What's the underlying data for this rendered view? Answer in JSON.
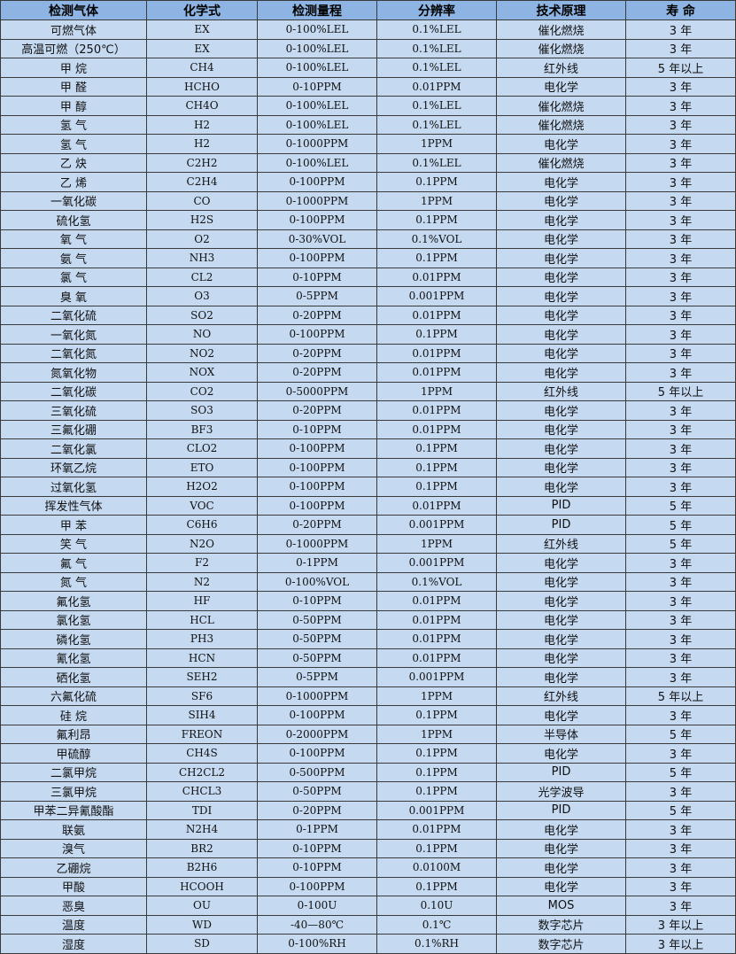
{
  "colors": {
    "header_bg": "#8db4e2",
    "row_bg": "#c5d9f1",
    "border": "#3a3a3a"
  },
  "table": {
    "headers": [
      "检测气体",
      "化学式",
      "检测量程",
      "分辨率",
      "技术原理",
      "寿 命"
    ],
    "rows": [
      [
        "可燃气体",
        "EX",
        "0-100%LEL",
        "0.1%LEL",
        "催化燃烧",
        "3 年"
      ],
      [
        "高温可燃（250℃）",
        "EX",
        "0-100%LEL",
        "0.1%LEL",
        "催化燃烧",
        "3 年"
      ],
      [
        "甲 烷",
        "CH4",
        "0-100%LEL",
        "0.1%LEL",
        "红外线",
        "5 年以上"
      ],
      [
        "甲 醛",
        "HCHO",
        "0-10PPM",
        "0.01PPM",
        "电化学",
        "3 年"
      ],
      [
        "甲 醇",
        "CH4O",
        "0-100%LEL",
        "0.1%LEL",
        "催化燃烧",
        "3 年"
      ],
      [
        "氢 气",
        "H2",
        "0-100%LEL",
        "0.1%LEL",
        "催化燃烧",
        "3 年"
      ],
      [
        "氢 气",
        "H2",
        "0-1000PPM",
        "1PPM",
        "电化学",
        "3 年"
      ],
      [
        "乙 炔",
        "C2H2",
        "0-100%LEL",
        "0.1%LEL",
        "催化燃烧",
        "3 年"
      ],
      [
        "乙 烯",
        "C2H4",
        "0-100PPM",
        "0.1PPM",
        "电化学",
        "3 年"
      ],
      [
        "一氧化碳",
        "CO",
        "0-1000PPM",
        "1PPM",
        "电化学",
        "3 年"
      ],
      [
        "硫化氢",
        "H2S",
        "0-100PPM",
        "0.1PPM",
        "电化学",
        "3 年"
      ],
      [
        "氧 气",
        "O2",
        "0-30%VOL",
        "0.1%VOL",
        "电化学",
        "3 年"
      ],
      [
        "氨 气",
        "NH3",
        "0-100PPM",
        "0.1PPM",
        "电化学",
        "3 年"
      ],
      [
        "氯 气",
        "CL2",
        "0-10PPM",
        "0.01PPM",
        "电化学",
        "3 年"
      ],
      [
        "臭 氧",
        "O3",
        "0-5PPM",
        "0.001PPM",
        "电化学",
        "3 年"
      ],
      [
        "二氧化硫",
        "SO2",
        "0-20PPM",
        "0.01PPM",
        "电化学",
        "3 年"
      ],
      [
        "一氧化氮",
        "NO",
        "0-100PPM",
        "0.1PPM",
        "电化学",
        "3 年"
      ],
      [
        "二氧化氮",
        "NO2",
        "0-20PPM",
        "0.01PPM",
        "电化学",
        "3 年"
      ],
      [
        "氮氧化物",
        "NOX",
        "0-20PPM",
        "0.01PPM",
        "电化学",
        "3 年"
      ],
      [
        "二氧化碳",
        "CO2",
        "0-5000PPM",
        "1PPM",
        "红外线",
        "5 年以上"
      ],
      [
        "三氧化硫",
        "SO3",
        "0-20PPM",
        "0.01PPM",
        "电化学",
        "3 年"
      ],
      [
        "三氟化硼",
        "BF3",
        "0-10PPM",
        "0.01PPM",
        "电化学",
        "3 年"
      ],
      [
        "二氧化氯",
        "CLO2",
        "0-100PPM",
        "0.1PPM",
        "电化学",
        "3 年"
      ],
      [
        "环氧乙烷",
        "ETO",
        "0-100PPM",
        "0.1PPM",
        "电化学",
        "3 年"
      ],
      [
        "过氧化氢",
        "H2O2",
        "0-100PPM",
        "0.1PPM",
        "电化学",
        "3 年"
      ],
      [
        "挥发性气体",
        "VOC",
        "0-100PPM",
        "0.01PPM",
        "PID",
        "5 年"
      ],
      [
        "甲 苯",
        "C6H6",
        "0-20PPM",
        "0.001PPM",
        "PID",
        "5 年"
      ],
      [
        "笑 气",
        "N2O",
        "0-1000PPM",
        "1PPM",
        "红外线",
        "5 年"
      ],
      [
        "氟 气",
        "F2",
        "0-1PPM",
        "0.001PPM",
        "电化学",
        "3 年"
      ],
      [
        "氮 气",
        "N2",
        "0-100%VOL",
        "0.1%VOL",
        "电化学",
        "3 年"
      ],
      [
        "氟化氢",
        "HF",
        "0-10PPM",
        "0.01PPM",
        "电化学",
        "3 年"
      ],
      [
        "氯化氢",
        "HCL",
        "0-50PPM",
        "0.01PPM",
        "电化学",
        "3 年"
      ],
      [
        "磷化氢",
        "PH3",
        "0-50PPM",
        "0.01PPM",
        "电化学",
        "3 年"
      ],
      [
        "氰化氢",
        "HCN",
        "0-50PPM",
        "0.01PPM",
        "电化学",
        "3 年"
      ],
      [
        "硒化氢",
        "SEH2",
        "0-5PPM",
        "0.001PPM",
        "电化学",
        "3 年"
      ],
      [
        "六氟化硫",
        "SF6",
        "0-1000PPM",
        "1PPM",
        "红外线",
        "5 年以上"
      ],
      [
        "硅 烷",
        "SIH4",
        "0-100PPM",
        "0.1PPM",
        "电化学",
        "3 年"
      ],
      [
        "氟利昂",
        "FREON",
        "0-2000PPM",
        "1PPM",
        "半导体",
        "5 年"
      ],
      [
        "甲硫醇",
        "CH4S",
        "0-100PPM",
        "0.1PPM",
        "电化学",
        "3 年"
      ],
      [
        "二氯甲烷",
        "CH2CL2",
        "0-500PPM",
        "0.1PPM",
        "PID",
        "5 年"
      ],
      [
        "三氯甲烷",
        "CHCL3",
        "0-50PPM",
        "0.1PPM",
        "光学波导",
        "3 年"
      ],
      [
        "甲苯二异氰酸酯",
        "TDI",
        "0-20PPM",
        "0.001PPM",
        "PID",
        "5 年"
      ],
      [
        "联氨",
        "N2H4",
        "0-1PPM",
        "0.01PPM",
        "电化学",
        "3 年"
      ],
      [
        "溴气",
        "BR2",
        "0-10PPM",
        "0.1PPM",
        "电化学",
        "3 年"
      ],
      [
        "乙硼烷",
        "B2H6",
        "0-10PPM",
        "0.0100M",
        "电化学",
        "3 年"
      ],
      [
        "甲酸",
        "HCOOH",
        "0-100PPM",
        "0.1PPM",
        "电化学",
        "3 年"
      ],
      [
        "恶臭",
        "OU",
        "0-100U",
        "0.10U",
        "MOS",
        "3 年"
      ],
      [
        "温度",
        "WD",
        "-40—80℃",
        "0.1℃",
        "数字芯片",
        "3 年以上"
      ],
      [
        "湿度",
        "SD",
        "0-100%RH",
        "0.1%RH",
        "数字芯片",
        "3 年以上"
      ]
    ]
  }
}
